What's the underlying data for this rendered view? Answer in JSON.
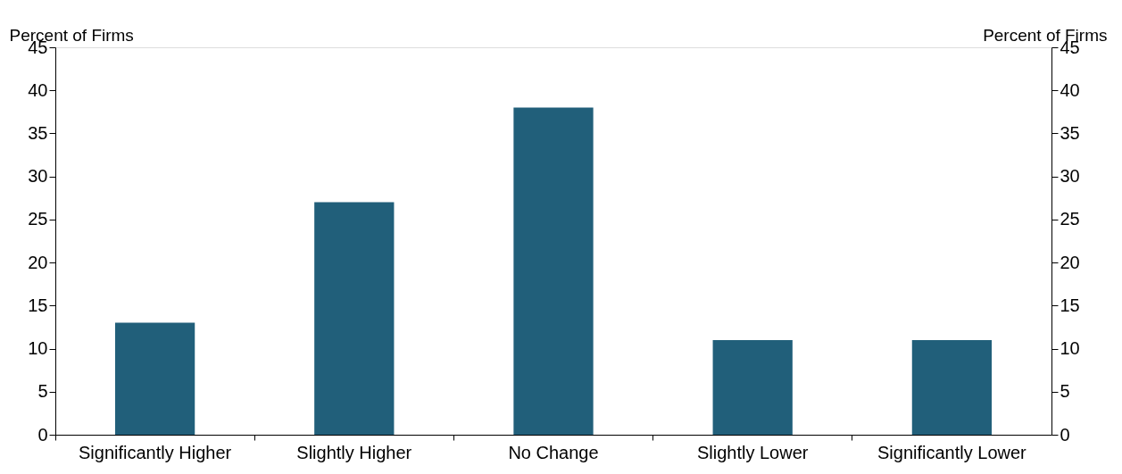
{
  "chart_data": {
    "type": "bar",
    "ylabel": "Percent of Firms",
    "y2label": "Percent of Firms",
    "categories": [
      "Significantly Higher",
      "Slightly Higher",
      "No Change",
      "Slightly Lower",
      "Significantly Lower"
    ],
    "values": [
      13,
      27,
      38,
      11,
      11
    ],
    "color": "#215f7a",
    "ylim": [
      0,
      45
    ],
    "yticks": [
      0,
      5,
      10,
      15,
      20,
      25,
      30,
      35,
      40,
      45
    ],
    "y2lim": [
      0,
      45
    ],
    "y2ticks": [
      0,
      5,
      10,
      15,
      20,
      25,
      30,
      35,
      40,
      45
    ],
    "grid": false
  }
}
